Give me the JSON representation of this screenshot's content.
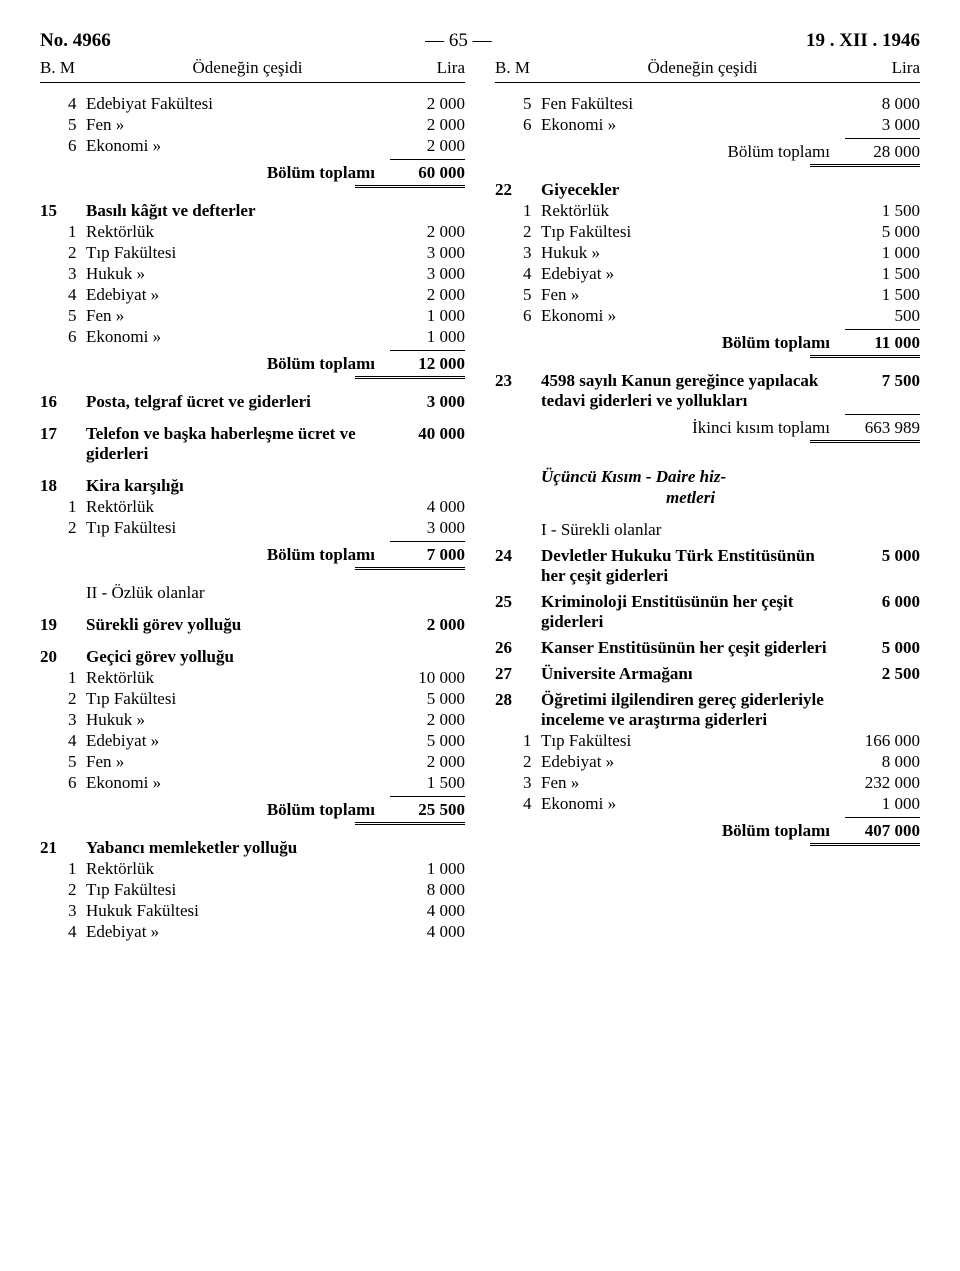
{
  "header": {
    "left": "No. 4966",
    "center": "— 65 —",
    "right": "19 . XII . 1946"
  },
  "colhead": {
    "bm": "B.  M",
    "mid": "Ödeneğin çeşidi",
    "lira": "Lira"
  },
  "left": {
    "r1": {
      "m": "4",
      "label": "Edebiyat Fakültesi",
      "amt": "2 000"
    },
    "r2": {
      "m": "5",
      "label": "Fen          »",
      "amt": "2 000"
    },
    "r3": {
      "m": "6",
      "label": "Ekonomi    »",
      "amt": "2 000"
    },
    "bt1": {
      "label": "Bölüm toplamı",
      "amt": "60 000"
    },
    "s15": {
      "b": "15",
      "label": "Basılı kâğıt ve defterler"
    },
    "s15r1": {
      "m": "1",
      "label": "Rektörlük",
      "amt": "2 000"
    },
    "s15r2": {
      "m": "2",
      "label": "Tıp      Fakültesi",
      "amt": "3 000"
    },
    "s15r3": {
      "m": "3",
      "label": "Hukuk     »",
      "amt": "3 000"
    },
    "s15r4": {
      "m": "4",
      "label": "Edebiyat  »",
      "amt": "2 000"
    },
    "s15r5": {
      "m": "5",
      "label": "Fen       »",
      "amt": "1 000"
    },
    "s15r6": {
      "m": "6",
      "label": "Ekonomi   »",
      "amt": "1 000"
    },
    "bt2": {
      "label": "Bölüm toplamı",
      "amt": "12 000"
    },
    "s16": {
      "b": "16",
      "label": "Posta, telgraf ücret ve gider­leri",
      "amt": "3 000"
    },
    "s17": {
      "b": "17",
      "label": "Telefon ve başka haberleşme ücret ve giderleri",
      "amt": "40 000"
    },
    "s18": {
      "b": "18",
      "label": "Kira karşılığı"
    },
    "s18r1": {
      "m": "1",
      "label": "Rektörlük",
      "amt": "4 000"
    },
    "s18r2": {
      "m": "2",
      "label": "Tıp Fakültesi",
      "amt": "3 000"
    },
    "bt3": {
      "label": "Bölüm toplamı",
      "amt": "7 000"
    },
    "sub2": "II - Özlük olanlar",
    "s19": {
      "b": "19",
      "label": "Sürekli görev yolluğu",
      "amt": "2 000"
    },
    "s20": {
      "b": "20",
      "label": "Geçici görev yolluğu"
    },
    "s20r1": {
      "m": "1",
      "label": "Rektörlük",
      "amt": "10 000"
    },
    "s20r2": {
      "m": "2",
      "label": "Tıp      Fakültesi",
      "amt": "5 000"
    },
    "s20r3": {
      "m": "3",
      "label": "Hukuk     »",
      "amt": "2 000"
    },
    "s20r4": {
      "m": "4",
      "label": "Edebiyat  »",
      "amt": "5 000"
    },
    "s20r5": {
      "m": "5",
      "label": "Fen       »",
      "amt": "2 000"
    },
    "s20r6": {
      "m": "6",
      "label": "Ekonomi   »",
      "amt": "1 500"
    },
    "bt4": {
      "label": "Bölüm toplamı",
      "amt": "25 500"
    },
    "s21": {
      "b": "21",
      "label": "Yabancı memleketler yolluğu"
    },
    "s21r1": {
      "m": "1",
      "label": "Rektörlük",
      "amt": "1 000"
    },
    "s21r2": {
      "m": "2",
      "label": "Tıp      Fakültesi",
      "amt": "8 000"
    },
    "s21r3": {
      "m": "3",
      "label": "Hukuk Fakültesi",
      "amt": "4 000"
    },
    "s21r4": {
      "m": "4",
      "label": "Edebiyat  »",
      "amt": "4 000"
    }
  },
  "right": {
    "r1": {
      "m": "5",
      "label": "Fen     Fakültesi",
      "amt": "8 000"
    },
    "r2": {
      "m": "6",
      "label": "Ekonomi   »",
      "amt": "3 000"
    },
    "bt1": {
      "label": "Bölüm toplamı",
      "amt": "28 000"
    },
    "s22": {
      "b": "22",
      "label": "Giyecekler"
    },
    "s22r1": {
      "m": "1",
      "label": "Rektörlük",
      "amt": "1 500"
    },
    "s22r2": {
      "m": "2",
      "label": "Tıp   Fakültesi",
      "amt": "5 000"
    },
    "s22r3": {
      "m": "3",
      "label": "Hukuk     »",
      "amt": "1 000"
    },
    "s22r4": {
      "m": "4",
      "label": "Edebiyat  »",
      "amt": "1 500"
    },
    "s22r5": {
      "m": "5",
      "label": "Fen       »",
      "amt": "1 500"
    },
    "s22r6": {
      "m": "6",
      "label": "Ekonomi   »",
      "amt": "500"
    },
    "bt2": {
      "label": "Bölüm toplamı",
      "amt": "11 000"
    },
    "s23": {
      "b": "23",
      "label": "4598 sayılı Kanun gereğince yapılacak tedavi giderleri ve yollukları",
      "amt": "7 500"
    },
    "iktop": {
      "label": "İkinci kısım toplamı",
      "amt": "663 989"
    },
    "kisim3a": "Üçüncü    Kısım - Daire hiz-",
    "kisim3b": "metleri",
    "sub1": "I - Sürekli olanlar",
    "s24": {
      "b": "24",
      "label": "Devletler Hukuku Türk Enstitüsünün her çeşit gi­derleri",
      "amt": "5 000"
    },
    "s25": {
      "b": "25",
      "label": "Kriminoloji Enstitüsünün her çeşit giderleri",
      "amt": "6 000"
    },
    "s26": {
      "b": "26",
      "label": "Kanser Enstitüsünün her çe­şit giderleri",
      "amt": "5 000"
    },
    "s27": {
      "b": "27",
      "label": "Üniversite Armağanı",
      "amt": "2 500"
    },
    "s28": {
      "b": "28",
      "label": "Öğretimi ilgilendiren gereç giderleriyle inceleme ve araş­tırma giderleri"
    },
    "s28r1": {
      "m": "1",
      "label": "Tıp   Fakültesi",
      "amt": "166 000"
    },
    "s28r2": {
      "m": "2",
      "label": "Edebiyat   »",
      "amt": "8 000"
    },
    "s28r3": {
      "m": "3",
      "label": "Fen        »",
      "amt": "232 000"
    },
    "s28r4": {
      "m": "4",
      "label": "Ekonomi    »",
      "amt": "1 000"
    },
    "bt3": {
      "label": "Bölüm toplamı",
      "amt": "407 000"
    }
  }
}
